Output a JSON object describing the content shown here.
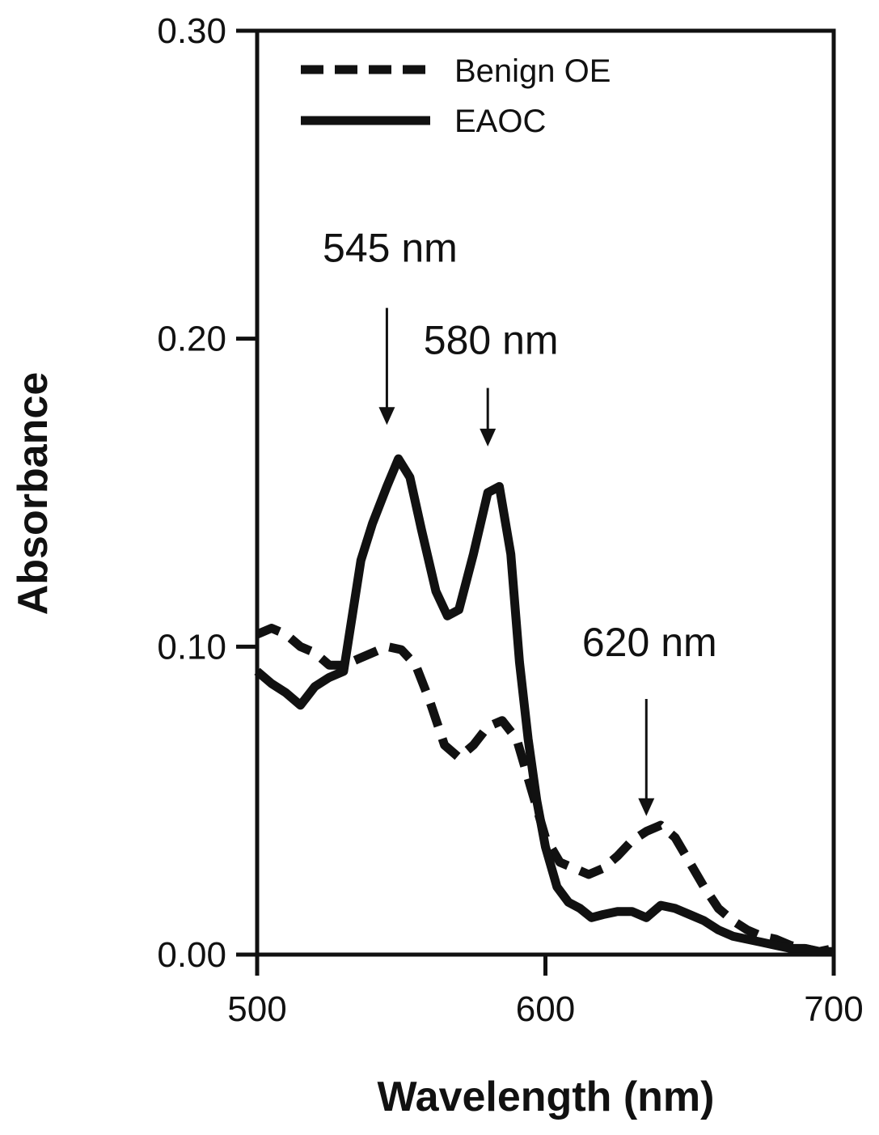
{
  "chart_data": {
    "type": "line",
    "title": "",
    "xlabel": "Wavelength (nm)",
    "ylabel": "Absorbance",
    "xlim": [
      500,
      700
    ],
    "ylim": [
      0.0,
      0.3
    ],
    "x_ticks": [
      "500",
      "600",
      "700"
    ],
    "y_ticks": [
      "0.00",
      "0.10",
      "0.20",
      "0.30"
    ],
    "x_tick_values": [
      500,
      600,
      700
    ],
    "y_tick_values": [
      0.0,
      0.1,
      0.2,
      0.3
    ],
    "grid": false,
    "legend_position": "top-left",
    "series": [
      {
        "name": "Benign OE",
        "style": "dashed",
        "color": "#111111",
        "x": [
          500,
          505,
          510,
          515,
          520,
          525,
          530,
          535,
          540,
          545,
          550,
          555,
          560,
          565,
          570,
          575,
          580,
          585,
          590,
          595,
          600,
          605,
          610,
          615,
          620,
          625,
          630,
          635,
          640,
          645,
          650,
          655,
          660,
          665,
          670,
          675,
          680,
          685,
          690,
          695,
          700
        ],
        "y": [
          0.104,
          0.106,
          0.104,
          0.1,
          0.098,
          0.094,
          0.094,
          0.096,
          0.098,
          0.1,
          0.099,
          0.094,
          0.082,
          0.068,
          0.064,
          0.068,
          0.074,
          0.076,
          0.07,
          0.054,
          0.038,
          0.03,
          0.028,
          0.026,
          0.028,
          0.032,
          0.037,
          0.04,
          0.042,
          0.038,
          0.03,
          0.022,
          0.015,
          0.011,
          0.008,
          0.006,
          0.005,
          0.003,
          0.002,
          0.001,
          0.002
        ]
      },
      {
        "name": "EAOC",
        "style": "solid",
        "color": "#111111",
        "x": [
          500,
          505,
          510,
          515,
          520,
          525,
          530,
          533,
          536,
          540,
          545,
          549,
          553,
          557,
          562,
          566,
          570,
          575,
          580,
          584,
          588,
          591,
          594,
          597,
          600,
          604,
          608,
          612,
          616,
          620,
          625,
          630,
          635,
          640,
          645,
          650,
          655,
          660,
          665,
          670,
          675,
          680,
          685,
          690,
          695,
          700
        ],
        "y": [
          0.092,
          0.088,
          0.085,
          0.081,
          0.087,
          0.09,
          0.092,
          0.11,
          0.128,
          0.14,
          0.152,
          0.161,
          0.155,
          0.138,
          0.118,
          0.11,
          0.112,
          0.13,
          0.15,
          0.152,
          0.13,
          0.095,
          0.07,
          0.05,
          0.035,
          0.022,
          0.017,
          0.015,
          0.012,
          0.013,
          0.014,
          0.014,
          0.012,
          0.016,
          0.015,
          0.013,
          0.011,
          0.008,
          0.006,
          0.005,
          0.004,
          0.003,
          0.002,
          0.002,
          0.001,
          0.001
        ]
      }
    ],
    "annotations": [
      {
        "text": "545 nm",
        "x": 545,
        "y_tip": 0.172,
        "y_tail": 0.21,
        "y_text": 0.225
      },
      {
        "text": "580 nm",
        "x": 580,
        "y_tip": 0.165,
        "y_tail": 0.184,
        "y_text": 0.195
      },
      {
        "text": "620 nm",
        "x": 635,
        "y_tip": 0.045,
        "y_tail": 0.083,
        "y_text": 0.097
      }
    ]
  }
}
